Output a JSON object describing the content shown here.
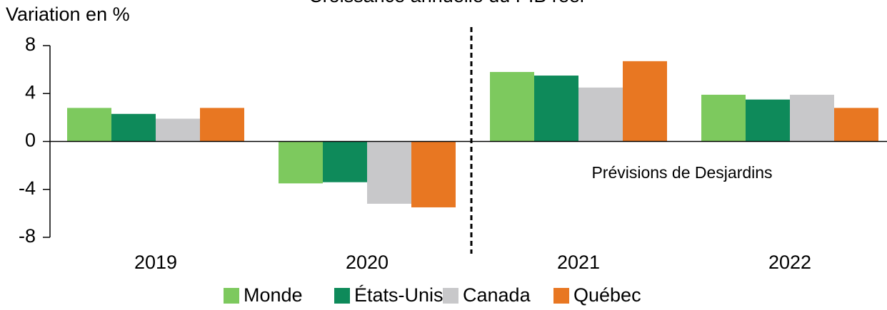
{
  "chart_data": {
    "type": "bar",
    "title": "Croissance annuelle du PIB réel",
    "y_label": "Variation en %",
    "annotation": "Prévisions de Desjardins",
    "categories": [
      "2019",
      "2020",
      "2021",
      "2022"
    ],
    "series": [
      {
        "name": "Monde",
        "color": "#7dc95e",
        "values": [
          2.8,
          -3.5,
          5.8,
          3.9
        ]
      },
      {
        "name": "États-Unis",
        "color": "#0e8a5a",
        "values": [
          2.3,
          -3.4,
          5.5,
          3.5
        ]
      },
      {
        "name": "Canada",
        "color": "#c8c8ca",
        "values": [
          1.9,
          -5.2,
          4.5,
          3.9
        ]
      },
      {
        "name": "Québec",
        "color": "#e87722",
        "values": [
          2.8,
          -5.5,
          6.7,
          2.8
        ]
      }
    ],
    "ylim": [
      -8,
      8
    ],
    "yticks": [
      -8,
      -4,
      0,
      4,
      8
    ],
    "legend": "bottom"
  }
}
